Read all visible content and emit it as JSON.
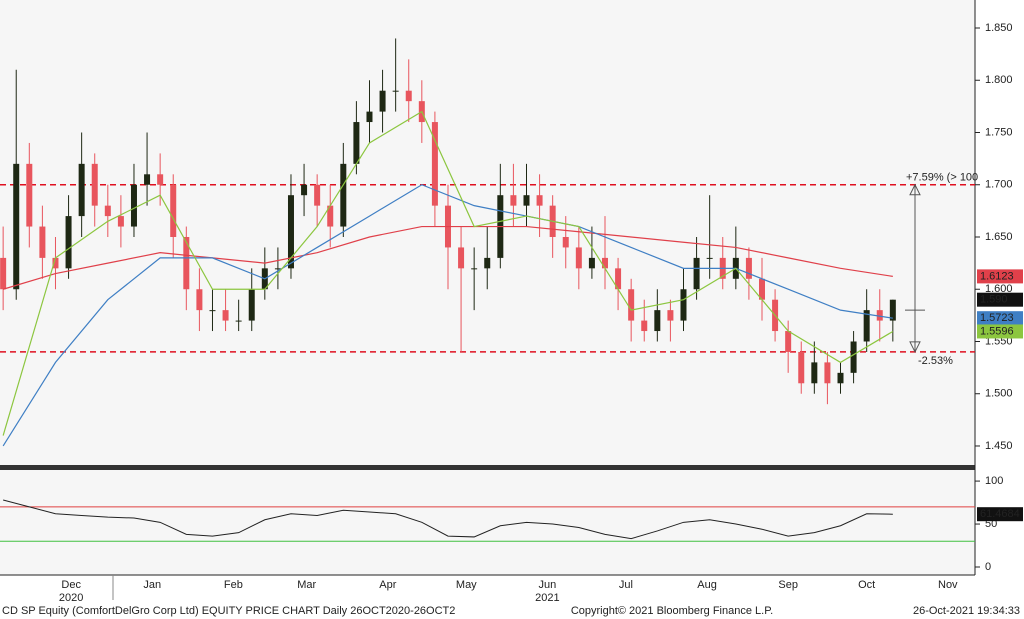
{
  "chart_data": {
    "type": "candlestick",
    "xlim": [
      23.8,
      396.4
    ],
    "ylim": [
      1.4318,
      1.8768
    ],
    "yticks": [
      {
        "value": 1.45,
        "label": "1.450"
      },
      {
        "value": 1.5,
        "label": "1.500"
      },
      {
        "value": 1.55,
        "label": "1.550"
      },
      {
        "value": 1.6,
        "label": "1.600"
      },
      {
        "value": 1.65,
        "label": "1.650"
      },
      {
        "value": 1.7,
        "label": "1.700"
      },
      {
        "value": 1.75,
        "label": "1.750"
      },
      {
        "value": 1.8,
        "label": "1.800"
      },
      {
        "value": 1.85,
        "label": "1.850"
      }
    ],
    "xticks": [
      {
        "value": 51,
        "label": "Dec"
      },
      {
        "value": 82,
        "label": "Jan"
      },
      {
        "value": 113,
        "label": "Feb"
      },
      {
        "value": 141,
        "label": "Mar"
      },
      {
        "value": 172,
        "label": "Apr"
      },
      {
        "value": 202,
        "label": "May"
      },
      {
        "value": 233,
        "label": "Jun"
      },
      {
        "value": 263,
        "label": "Jul"
      },
      {
        "value": 294,
        "label": "Aug"
      },
      {
        "value": 325,
        "label": "Sep"
      },
      {
        "value": 355,
        "label": "Oct"
      },
      {
        "value": 386,
        "label": "Nov"
      }
    ],
    "year_labels": [
      {
        "value": 51,
        "label": "2020"
      },
      {
        "value": 233,
        "label": "2021"
      }
    ],
    "candles": {
      "up_color": "#1e2814",
      "down_color": "#e8555d",
      "x": [
        25,
        30,
        35,
        40,
        45,
        50,
        55,
        60,
        65,
        70,
        75,
        80,
        85,
        90,
        95,
        100,
        105,
        110,
        115,
        120,
        125,
        130,
        135,
        140,
        145,
        150,
        155,
        160,
        165,
        170,
        175,
        180,
        185,
        190,
        195,
        200,
        205,
        210,
        215,
        220,
        225,
        230,
        235,
        240,
        245,
        250,
        255,
        260,
        265,
        270,
        275,
        280,
        285,
        290,
        295,
        300,
        305,
        310,
        315,
        320,
        325,
        330,
        335,
        340,
        345,
        350,
        355,
        360,
        365
      ],
      "open": [
        1.63,
        1.6,
        1.72,
        1.66,
        1.63,
        1.62,
        1.67,
        1.72,
        1.68,
        1.67,
        1.66,
        1.7,
        1.71,
        1.7,
        1.65,
        1.6,
        1.58,
        1.58,
        1.57,
        1.57,
        1.6,
        1.62,
        1.62,
        1.69,
        1.7,
        1.68,
        1.66,
        1.72,
        1.76,
        1.77,
        1.79,
        1.79,
        1.78,
        1.76,
        1.68,
        1.64,
        1.62,
        1.62,
        1.63,
        1.69,
        1.68,
        1.69,
        1.68,
        1.65,
        1.64,
        1.62,
        1.63,
        1.62,
        1.6,
        1.57,
        1.56,
        1.58,
        1.57,
        1.6,
        1.63,
        1.63,
        1.61,
        1.63,
        1.61,
        1.59,
        1.56,
        1.54,
        1.51,
        1.53,
        1.51,
        1.52,
        1.55,
        1.58,
        1.57
      ],
      "high": [
        1.66,
        1.81,
        1.74,
        1.68,
        1.65,
        1.69,
        1.75,
        1.73,
        1.7,
        1.69,
        1.72,
        1.75,
        1.73,
        1.71,
        1.66,
        1.62,
        1.6,
        1.6,
        1.59,
        1.62,
        1.64,
        1.64,
        1.71,
        1.72,
        1.71,
        1.7,
        1.74,
        1.78,
        1.8,
        1.81,
        1.84,
        1.82,
        1.8,
        1.77,
        1.7,
        1.66,
        1.64,
        1.66,
        1.72,
        1.72,
        1.72,
        1.71,
        1.69,
        1.67,
        1.66,
        1.66,
        1.67,
        1.63,
        1.61,
        1.59,
        1.6,
        1.59,
        1.62,
        1.65,
        1.69,
        1.65,
        1.66,
        1.64,
        1.63,
        1.6,
        1.57,
        1.55,
        1.55,
        1.54,
        1.53,
        1.56,
        1.6,
        1.6,
        1.59
      ],
      "low": [
        1.58,
        1.59,
        1.64,
        1.61,
        1.6,
        1.61,
        1.65,
        1.66,
        1.65,
        1.64,
        1.65,
        1.68,
        1.68,
        1.63,
        1.58,
        1.56,
        1.56,
        1.56,
        1.56,
        1.56,
        1.59,
        1.6,
        1.61,
        1.67,
        1.66,
        1.64,
        1.65,
        1.71,
        1.74,
        1.75,
        1.77,
        1.76,
        1.74,
        1.66,
        1.6,
        1.54,
        1.58,
        1.6,
        1.62,
        1.66,
        1.66,
        1.65,
        1.63,
        1.62,
        1.6,
        1.61,
        1.6,
        1.58,
        1.55,
        1.55,
        1.55,
        1.55,
        1.56,
        1.59,
        1.61,
        1.6,
        1.6,
        1.59,
        1.57,
        1.55,
        1.52,
        1.5,
        1.5,
        1.49,
        1.5,
        1.51,
        1.54,
        1.55,
        1.55
      ],
      "close": [
        1.6,
        1.72,
        1.66,
        1.63,
        1.62,
        1.67,
        1.72,
        1.68,
        1.67,
        1.66,
        1.7,
        1.71,
        1.7,
        1.65,
        1.6,
        1.58,
        1.58,
        1.57,
        1.57,
        1.6,
        1.62,
        1.62,
        1.69,
        1.7,
        1.68,
        1.66,
        1.72,
        1.76,
        1.77,
        1.79,
        1.79,
        1.78,
        1.76,
        1.68,
        1.64,
        1.62,
        1.62,
        1.63,
        1.69,
        1.68,
        1.69,
        1.68,
        1.65,
        1.64,
        1.62,
        1.63,
        1.62,
        1.6,
        1.57,
        1.56,
        1.58,
        1.57,
        1.6,
        1.63,
        1.63,
        1.61,
        1.63,
        1.61,
        1.59,
        1.56,
        1.54,
        1.51,
        1.53,
        1.51,
        1.52,
        1.55,
        1.58,
        1.57,
        1.59
      ],
      "close_label": "1.590",
      "label_bg": "#111111",
      "label_fg": "#ffffff"
    },
    "series": [
      {
        "color": "#e0404a",
        "label_fg": "#ffffff",
        "x": [
          25,
          45,
          65,
          85,
          105,
          125,
          145,
          165,
          185,
          205,
          225,
          245,
          265,
          285,
          305,
          325,
          345,
          365
        ],
        "values": [
          1.6,
          1.615,
          1.625,
          1.635,
          1.63,
          1.625,
          1.635,
          1.65,
          1.66,
          1.66,
          1.66,
          1.655,
          1.65,
          1.645,
          1.64,
          1.63,
          1.62,
          1.6123
        ]
      },
      {
        "color": "#3f7fc4",
        "label_fg": "#ffffff",
        "x": [
          25,
          45,
          65,
          85,
          105,
          125,
          145,
          165,
          185,
          205,
          225,
          245,
          265,
          285,
          305,
          325,
          345,
          365
        ],
        "values": [
          1.45,
          1.53,
          1.59,
          1.63,
          1.63,
          1.61,
          1.64,
          1.67,
          1.7,
          1.68,
          1.67,
          1.66,
          1.64,
          1.62,
          1.62,
          1.6,
          1.58,
          1.5723
        ]
      },
      {
        "color": "#8cc63f",
        "label_fg": "#111111",
        "x": [
          25,
          45,
          65,
          85,
          105,
          125,
          145,
          165,
          185,
          205,
          225,
          245,
          265,
          285,
          305,
          325,
          345,
          365
        ],
        "values": [
          1.46,
          1.63,
          1.665,
          1.69,
          1.6,
          1.6,
          1.66,
          1.74,
          1.77,
          1.66,
          1.67,
          1.66,
          1.58,
          1.59,
          1.62,
          1.56,
          1.53,
          1.5596
        ]
      }
    ],
    "levels": [
      {
        "value": 1.7,
        "label": "+7.59% (> 100"
      },
      {
        "value": 1.54,
        "label": "-2.53%"
      }
    ],
    "level_color": "#e01020",
    "range_center": 1.58,
    "rsi": {
      "ylim": [
        -9.3,
        112.9
      ],
      "yticks": [
        0,
        50,
        100
      ],
      "upper": 70,
      "upper_color": "#e04040",
      "lower": 30,
      "lower_color": "#40c040",
      "color": "#222222",
      "x": [
        25,
        35,
        45,
        55,
        65,
        75,
        85,
        95,
        105,
        115,
        125,
        135,
        145,
        155,
        165,
        175,
        185,
        195,
        205,
        215,
        225,
        235,
        245,
        255,
        265,
        275,
        285,
        295,
        305,
        315,
        325,
        335,
        345,
        355,
        365
      ],
      "values": [
        78,
        70,
        62,
        60,
        58,
        57,
        52,
        38,
        36,
        40,
        55,
        62,
        60,
        66,
        64,
        62,
        52,
        36,
        35,
        48,
        52,
        50,
        46,
        38,
        33,
        42,
        52,
        55,
        50,
        44,
        36,
        40,
        48,
        62,
        61.4684
      ]
    },
    "footer_left": "CD SP Equity (ComfortDelGro Corp Ltd) EQUITY PRICE CHART  Daily 26OCT2020-26OCT2",
    "footer_center": "Copyright© 2021 Bloomberg Finance L.P.",
    "footer_right": "26-Oct-2021 19:34:33"
  }
}
